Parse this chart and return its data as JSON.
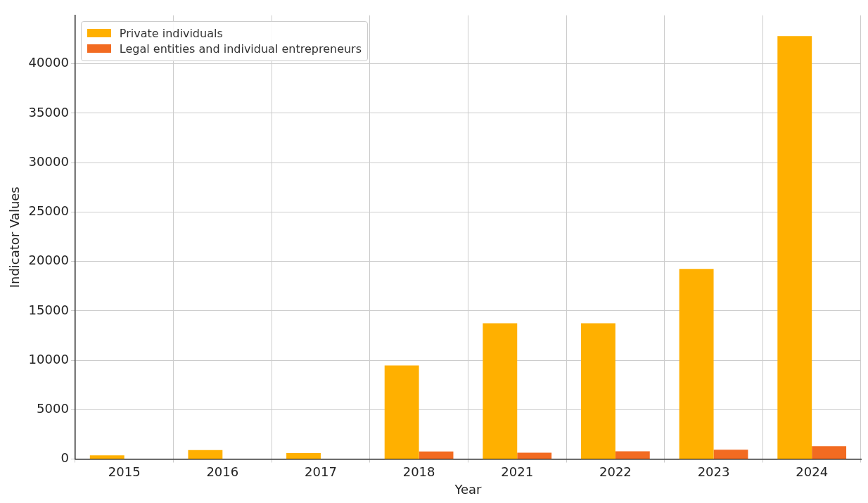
{
  "chart_data": {
    "type": "bar",
    "xlabel": "Year",
    "ylabel": "Indicator Values",
    "categories": [
      "2015",
      "2016",
      "2017",
      "2018",
      "2021",
      "2022",
      "2023",
      "2024"
    ],
    "series": [
      {
        "name": "Private individuals",
        "color": "#ffb000",
        "values": [
          400,
          930,
          620,
          9480,
          13750,
          13750,
          19250,
          42800
        ]
      },
      {
        "name": "Legal entities and individual entrepreneurs",
        "color": "#f26b21",
        "values": [
          0,
          0,
          0,
          780,
          660,
          810,
          960,
          1320
        ]
      }
    ],
    "ylim": [
      0,
      44900
    ],
    "yticks": [
      0,
      5000,
      10000,
      15000,
      20000,
      25000,
      30000,
      35000,
      40000
    ],
    "grid": true,
    "legend": "top left"
  }
}
